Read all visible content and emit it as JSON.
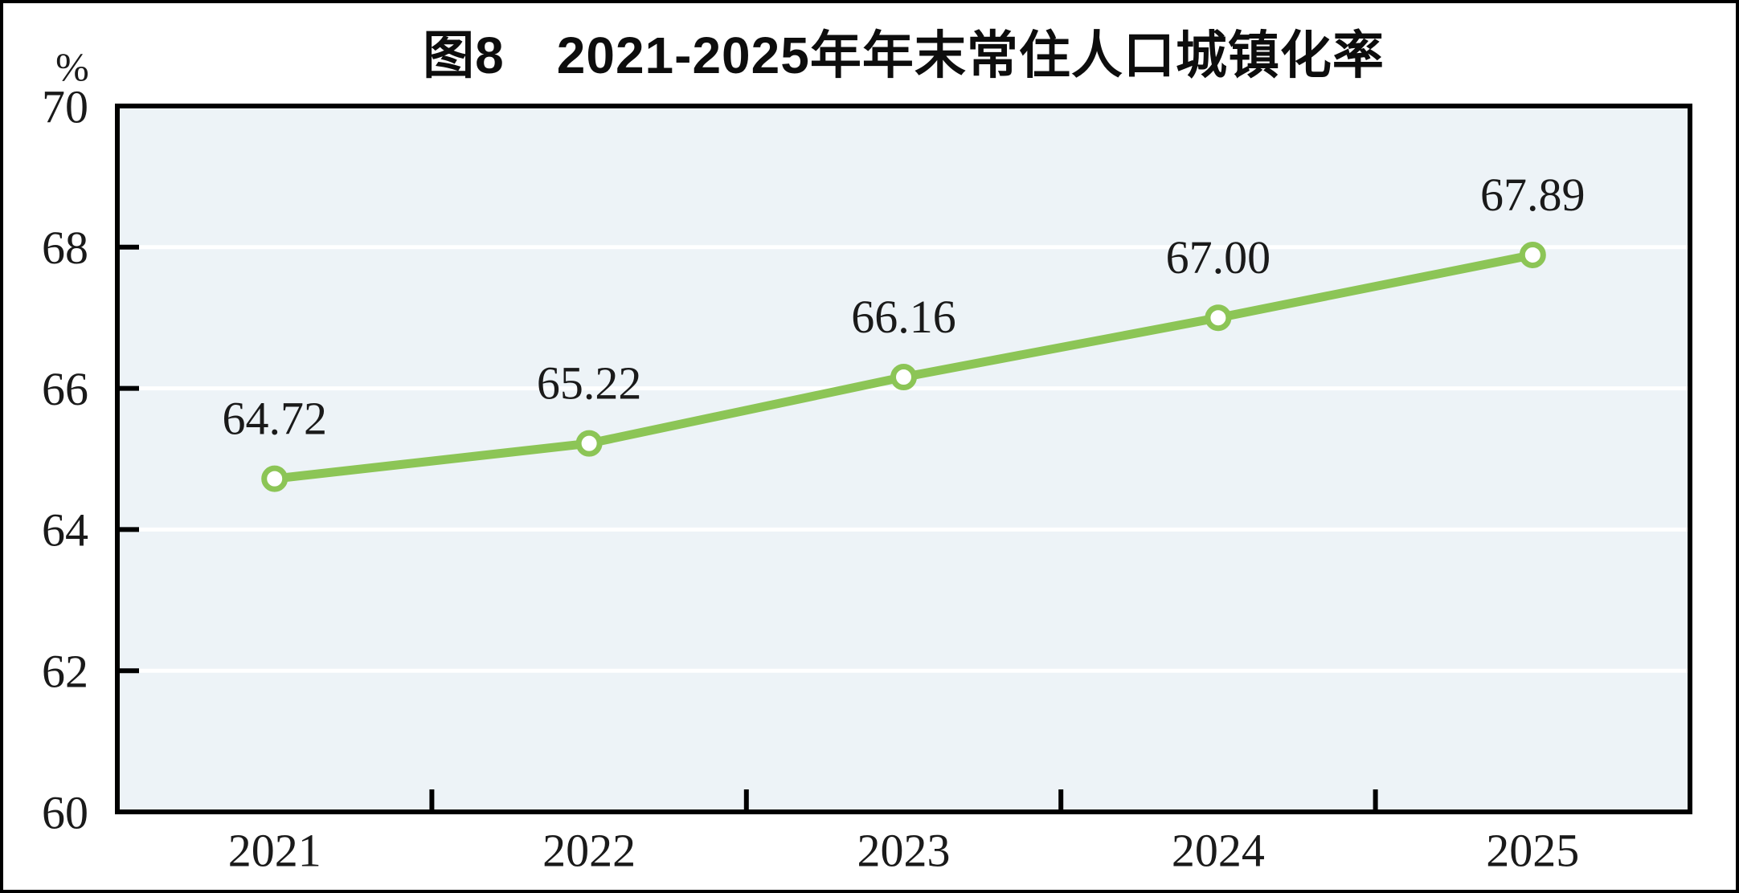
{
  "figure": {
    "title": "图8　2021-2025年年末常住人口城镇化率",
    "unit_label": "%"
  },
  "chart_data": {
    "type": "line",
    "title": "图8　2021-2025年年末常住人口城镇化率",
    "unit": "%",
    "categories": [
      "2021",
      "2022",
      "2023",
      "2024",
      "2025"
    ],
    "values": [
      64.72,
      65.22,
      66.16,
      67.0,
      67.89
    ],
    "point_labels": [
      "64.72",
      "65.22",
      "66.16",
      "67.00",
      "67.89"
    ],
    "ylim": [
      60,
      70
    ],
    "yticks": [
      60,
      62,
      64,
      66,
      68,
      70
    ],
    "grid": "horizontal-white-lines",
    "legend": "none",
    "xaxis_tick_style": "between-categories",
    "colors": {
      "line": "#8CC556",
      "marker_fill": "#FFFFFF",
      "marker_stroke": "#8CC556",
      "plot_bg": "#EDF3F7",
      "gridline": "#FFFFFF",
      "axis": "#000000",
      "text": "#1A1A1A"
    }
  }
}
